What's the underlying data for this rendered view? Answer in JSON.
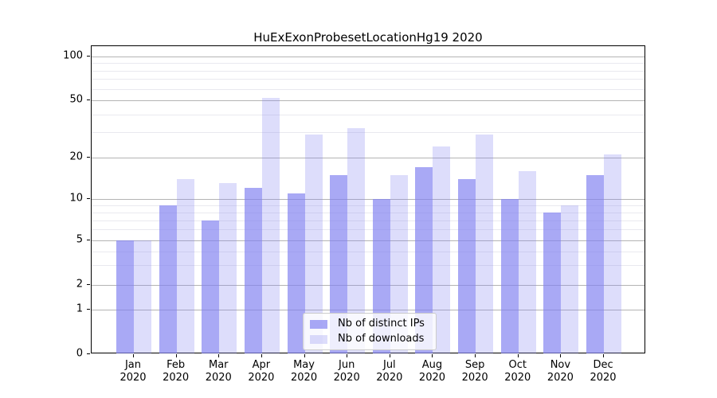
{
  "figure": {
    "title": "HuExExonProbesetLocationHg19 2020"
  },
  "chart_data": {
    "type": "bar",
    "title": "HuExExonProbesetLocationHg19 2020",
    "categories": [
      "Jan",
      "Feb",
      "Mar",
      "Apr",
      "May",
      "Jun",
      "Jul",
      "Aug",
      "Sep",
      "Oct",
      "Nov",
      "Dec"
    ],
    "category_year": "2020",
    "series": [
      {
        "name": "Nb of distinct IPs",
        "color": "#8080f0ad",
        "values": [
          5,
          9,
          7,
          12,
          11,
          15,
          10,
          17,
          14,
          10,
          8,
          15
        ]
      },
      {
        "name": "Nb of downloads",
        "color": "#8080f045",
        "values": [
          5,
          14,
          13,
          52,
          29,
          32,
          15,
          24,
          29,
          16,
          9,
          21
        ]
      }
    ],
    "xlabel": "",
    "ylabel": "",
    "yscale": "symlog",
    "ylim": [
      0,
      110
    ],
    "yticks": [
      0,
      1,
      2,
      5,
      10,
      20,
      50,
      100
    ],
    "minor_gridlines": [
      3,
      4,
      6,
      7,
      8,
      9,
      30,
      40,
      60,
      70,
      80,
      90
    ],
    "grid": true,
    "legend_position": "lower center",
    "grid_major_color": "#b4b4b4",
    "grid_minor_color": "#e9e9ef"
  }
}
